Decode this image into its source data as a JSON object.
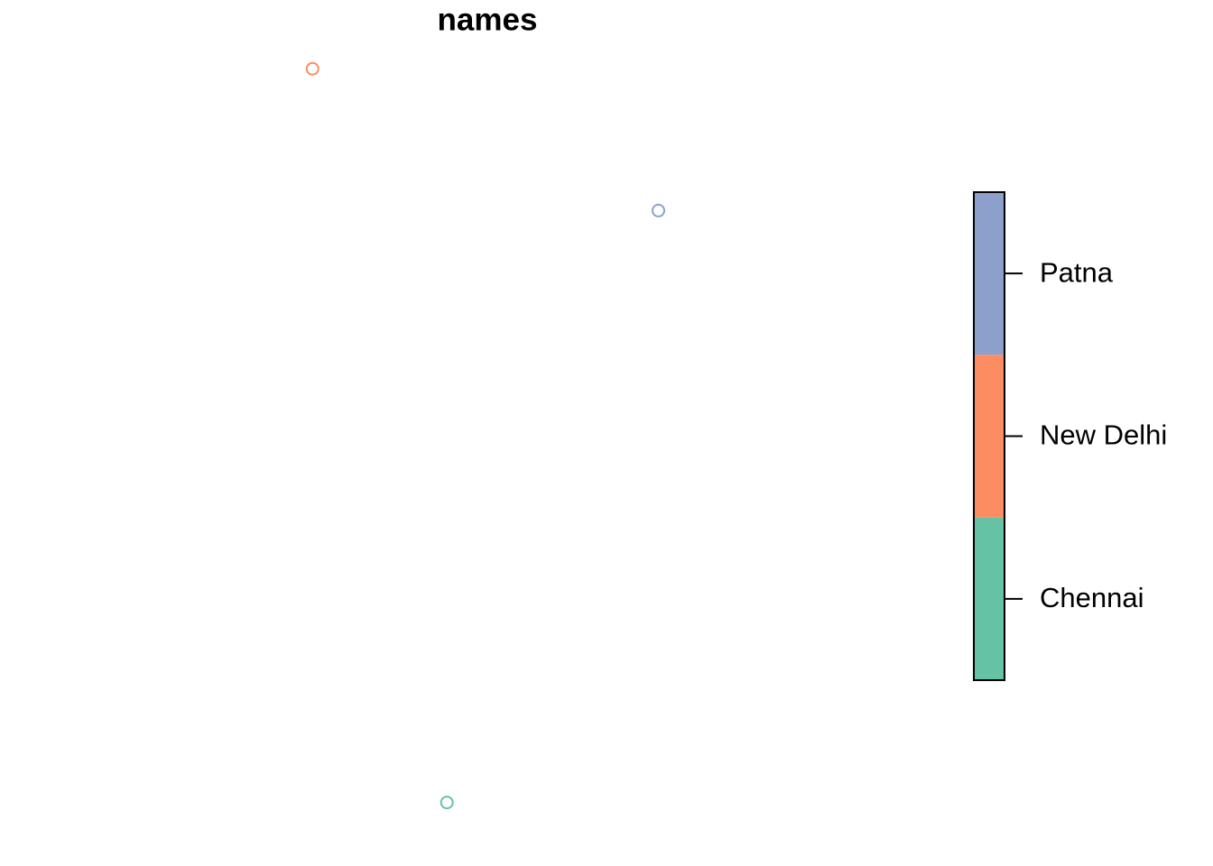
{
  "chart_data": {
    "type": "scatter",
    "title": "names",
    "series": [
      {
        "name": "Chennai",
        "color": "#66C2A5",
        "x": [
          80.27
        ],
        "values": [
          13.08
        ]
      },
      {
        "name": "New Delhi",
        "color": "#FC8D62",
        "x": [
          77.2
        ],
        "values": [
          28.6
        ]
      },
      {
        "name": "Patna",
        "color": "#8DA0CB",
        "x": [
          85.1
        ],
        "values": [
          25.6
        ]
      }
    ],
    "xlim": [
      71.3,
      91.5
    ],
    "ylim": [
      12.5,
      29.1
    ],
    "legend": "right"
  }
}
